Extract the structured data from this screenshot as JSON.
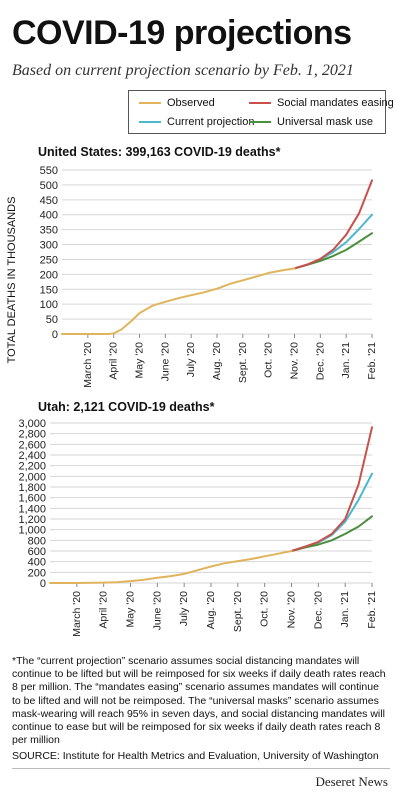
{
  "title": "COVID-19 projections",
  "subtitle": "Based on current projection scenario by Feb. 1, 2021",
  "colors": {
    "observed": "#e0b45c",
    "current": "#4bb8d0",
    "mandates": "#c9504b",
    "mask": "#4a8f3c"
  },
  "legend": {
    "observed": "Observed",
    "mandates": "Social mandates easing",
    "current": "Current projection",
    "mask": "Universal mask use"
  },
  "y_axis_label": "TOTAL DEATHS IN THOUSANDS",
  "chart_data": [
    {
      "type": "line",
      "title": "United States: 399,163 COVID-19 deaths*",
      "ylabel": "TOTAL DEATHS IN THOUSANDS",
      "ylim": [
        0,
        550
      ],
      "yticks": [
        "0",
        "50",
        "100",
        "150",
        "200",
        "250",
        "300",
        "350",
        "400",
        "450",
        "500",
        "550"
      ],
      "xticks": [
        "March '20",
        "April '20",
        "May '20",
        "June '20",
        "July '20",
        "Aug. '20",
        "Sept. '20",
        "Oct. '20",
        "Nov. '20",
        "Dec. '20",
        "Jan. '21",
        "Feb. '21"
      ],
      "grid": true,
      "series": [
        {
          "name": "Observed",
          "key": "observed",
          "x": [
            -1,
            0,
            0.8,
            1.0,
            1.3,
            1.7,
            2.0,
            2.5,
            3.0,
            3.5,
            4.0,
            4.5,
            5.0,
            5.5,
            6.0,
            6.5,
            7.0,
            7.5,
            8.0
          ],
          "y": [
            0,
            0,
            0,
            2,
            15,
            45,
            70,
            95,
            108,
            120,
            130,
            140,
            152,
            168,
            180,
            192,
            205,
            213,
            220
          ]
        },
        {
          "name": "Current projection",
          "key": "current",
          "x": [
            8.0,
            8.5,
            9.0,
            9.5,
            10.0,
            10.5,
            11.0
          ],
          "y": [
            220,
            233,
            250,
            275,
            308,
            352,
            400
          ]
        },
        {
          "name": "Social mandates easing",
          "key": "mandates",
          "x": [
            8.0,
            8.5,
            9.0,
            9.5,
            10.0,
            10.5,
            11.0
          ],
          "y": [
            220,
            233,
            252,
            283,
            333,
            405,
            515
          ]
        },
        {
          "name": "Universal mask use",
          "key": "mask",
          "x": [
            8.0,
            8.5,
            9.0,
            9.5,
            10.0,
            10.5,
            11.0
          ],
          "y": [
            220,
            232,
            245,
            262,
            282,
            310,
            338
          ]
        }
      ]
    },
    {
      "type": "line",
      "title": "Utah: 2,121 COVID-19 deaths*",
      "ylim": [
        0,
        3000
      ],
      "yticks": [
        "0",
        "200",
        "400",
        "600",
        "800",
        "1,000",
        "1,200",
        "1,400",
        "1,600",
        "1,800",
        "2,000",
        "2,200",
        "2,400",
        "2,600",
        "2,800",
        "3,000"
      ],
      "xticks": [
        "March '20",
        "April '20",
        "May '20",
        "June '20",
        "July '20",
        "Aug. '20",
        "Sept. '20",
        "Oct. '20",
        "Nov. '20",
        "Dec. '20",
        "Jan. '21",
        "Feb. '21"
      ],
      "grid": true,
      "series": [
        {
          "name": "Observed",
          "key": "observed",
          "x": [
            -1,
            0,
            1.0,
            1.5,
            2.0,
            2.5,
            3.0,
            3.5,
            4.0,
            4.5,
            5.0,
            5.5,
            6.0,
            6.5,
            7.0,
            7.5,
            8.0
          ],
          "y": [
            0,
            0,
            8,
            15,
            35,
            60,
            100,
            130,
            170,
            240,
            310,
            370,
            410,
            450,
            500,
            550,
            600
          ]
        },
        {
          "name": "Current projection",
          "key": "current",
          "x": [
            8.0,
            8.5,
            9.0,
            9.5,
            10.0,
            10.5,
            11.0
          ],
          "y": [
            600,
            680,
            760,
            900,
            1150,
            1560,
            2050
          ]
        },
        {
          "name": "Social mandates easing",
          "key": "mandates",
          "x": [
            8.0,
            8.5,
            9.0,
            9.5,
            10.0,
            10.5,
            11.0
          ],
          "y": [
            600,
            680,
            770,
            920,
            1200,
            1850,
            2920
          ]
        },
        {
          "name": "Universal mask use",
          "key": "mask",
          "x": [
            8.0,
            8.5,
            9.0,
            9.5,
            10.0,
            10.5,
            11.0
          ],
          "y": [
            600,
            665,
            720,
            800,
            920,
            1060,
            1250
          ]
        }
      ]
    }
  ],
  "footnote": "*The “current projection” scenario assumes social distancing mandates will continue to be lifted but will be reimposed for six weeks if daily death rates reach 8 per million. The “mandates easing” scenario assumes mandates will continue to be lifted and will not be reimposed. The “universal masks” scenario assumes mask-wearing will reach 95% in seven days, and social distancing mandates will continue to ease but will be reimposed for six weeks if daily death rates reach 8 per million",
  "source": "SOURCE: Institute for Health Metrics and Evaluation, University of Washington",
  "brand": "Deseret News"
}
